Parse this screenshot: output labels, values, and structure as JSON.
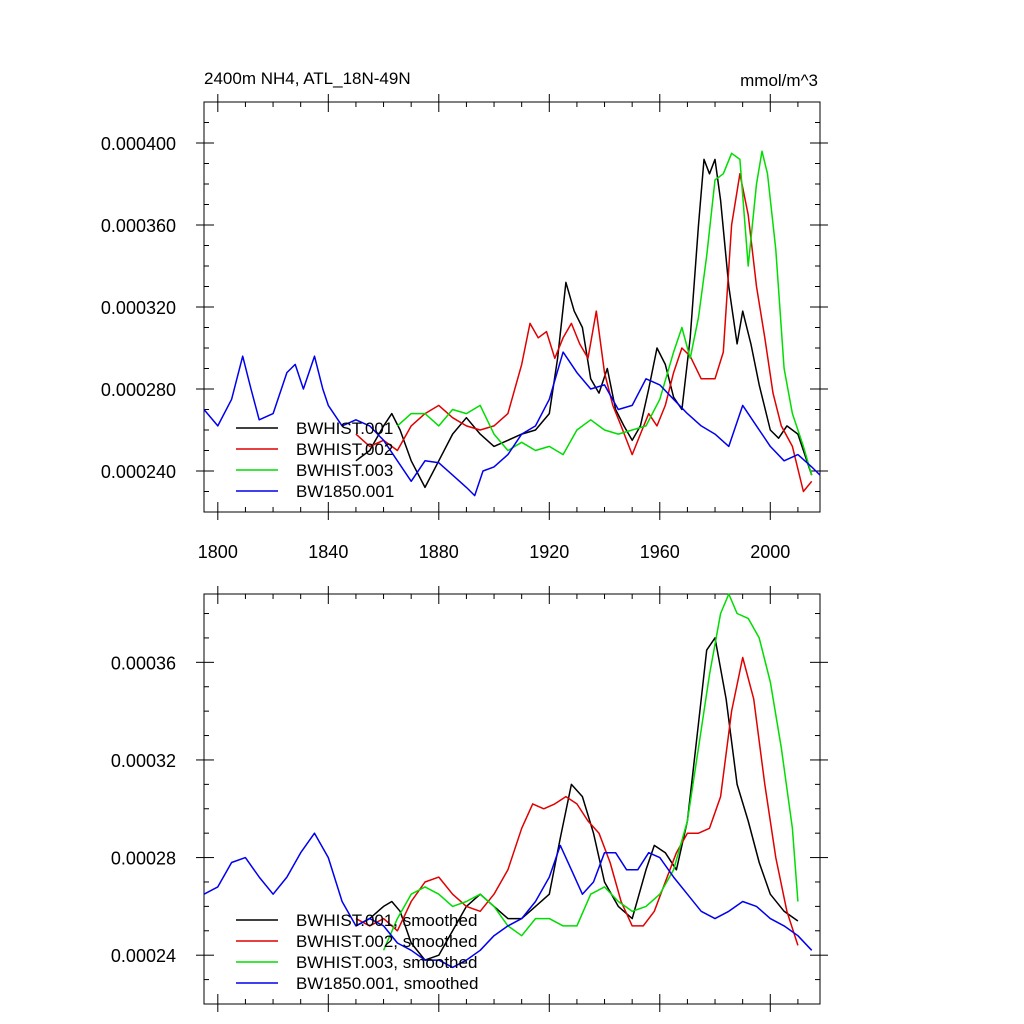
{
  "chart_data": [
    {
      "type": "line",
      "title": "2400m NH4, ATL_18N-49N",
      "units": "mmol/m^3",
      "xlabel": "",
      "ylabel": "",
      "xlim": [
        1795,
        2018
      ],
      "ylim": [
        0.00022,
        0.00042
      ],
      "x_ticks": [
        1800,
        1840,
        1880,
        1920,
        1960,
        2000
      ],
      "x_tick_labels": [
        "1800",
        "1840",
        "1880",
        "1920",
        "1960",
        "2000"
      ],
      "y_ticks": [
        0.00024,
        0.00028,
        0.00032,
        0.00036,
        0.0004
      ],
      "y_tick_labels": [
        "0.000240",
        "0.000280",
        "0.000320",
        "0.000360",
        "0.000400"
      ],
      "legend_position": "bottom-left",
      "series": [
        {
          "name": "BWHIST.001",
          "color": "#000000",
          "x": [
            1850,
            1855,
            1860,
            1863,
            1866,
            1870,
            1875,
            1880,
            1885,
            1890,
            1895,
            1900,
            1905,
            1910,
            1915,
            1920,
            1923,
            1926,
            1929,
            1932,
            1935,
            1938,
            1941,
            1944,
            1947,
            1950,
            1953,
            1956,
            1959,
            1962,
            1965,
            1968,
            1971,
            1974,
            1976,
            1978,
            1980,
            1982,
            1985,
            1988,
            1990,
            1993,
            1996,
            2000,
            2003,
            2006,
            2010,
            2015
          ],
          "y": [
            0.000245,
            0.00025,
            0.000262,
            0.000268,
            0.00026,
            0.000245,
            0.000232,
            0.000245,
            0.000258,
            0.000266,
            0.000258,
            0.000252,
            0.000255,
            0.000258,
            0.00026,
            0.000268,
            0.000295,
            0.000332,
            0.000318,
            0.00031,
            0.000285,
            0.000278,
            0.00029,
            0.00027,
            0.000262,
            0.000255,
            0.000262,
            0.00028,
            0.0003,
            0.000292,
            0.000276,
            0.00027,
            0.000305,
            0.00036,
            0.000392,
            0.000385,
            0.000392,
            0.000372,
            0.00033,
            0.000302,
            0.000318,
            0.000302,
            0.000282,
            0.00026,
            0.000256,
            0.000262,
            0.000258,
            0.000238
          ]
        },
        {
          "name": "BWHIST.002",
          "color": "#e00000",
          "x": [
            1850,
            1855,
            1860,
            1865,
            1870,
            1875,
            1880,
            1885,
            1890,
            1895,
            1900,
            1905,
            1910,
            1913,
            1916,
            1919,
            1922,
            1925,
            1928,
            1931,
            1934,
            1937,
            1940,
            1943,
            1946,
            1950,
            1953,
            1956,
            1959,
            1962,
            1965,
            1968,
            1971,
            1975,
            1980,
            1983,
            1986,
            1989,
            1992,
            1995,
            1998,
            2001,
            2004,
            2008,
            2012,
            2015
          ],
          "y": [
            0.000258,
            0.000252,
            0.000255,
            0.00025,
            0.000262,
            0.000268,
            0.000272,
            0.000266,
            0.000262,
            0.00026,
            0.000262,
            0.000268,
            0.000292,
            0.000312,
            0.000305,
            0.000308,
            0.000295,
            0.000305,
            0.000312,
            0.000302,
            0.000295,
            0.000318,
            0.000288,
            0.000272,
            0.000262,
            0.000248,
            0.000258,
            0.000268,
            0.000262,
            0.000272,
            0.000288,
            0.0003,
            0.000296,
            0.000285,
            0.000285,
            0.000298,
            0.00036,
            0.000385,
            0.000365,
            0.00033,
            0.000305,
            0.000278,
            0.000262,
            0.000252,
            0.00023,
            0.000235
          ]
        },
        {
          "name": "BWHIST.003",
          "color": "#00dd00",
          "x": [
            1865,
            1870,
            1875,
            1880,
            1885,
            1890,
            1895,
            1900,
            1905,
            1910,
            1915,
            1920,
            1925,
            1930,
            1935,
            1940,
            1945,
            1950,
            1955,
            1960,
            1965,
            1968,
            1971,
            1974,
            1977,
            1980,
            1983,
            1986,
            1989,
            1992,
            1995,
            1997,
            1999,
            2002,
            2005,
            2008,
            2012,
            2015
          ],
          "y": [
            0.000262,
            0.000268,
            0.000268,
            0.000262,
            0.00027,
            0.000268,
            0.000272,
            0.000258,
            0.00025,
            0.000254,
            0.00025,
            0.000252,
            0.000248,
            0.00026,
            0.000265,
            0.00026,
            0.000258,
            0.00026,
            0.000262,
            0.000275,
            0.000298,
            0.00031,
            0.000295,
            0.000315,
            0.000345,
            0.000382,
            0.000385,
            0.000395,
            0.000392,
            0.00034,
            0.00038,
            0.000396,
            0.000385,
            0.000348,
            0.00029,
            0.000268,
            0.000252,
            0.000238
          ]
        },
        {
          "name": "BW1850.001",
          "color": "#0000ee",
          "x": [
            1795,
            1800,
            1805,
            1809,
            1812,
            1815,
            1820,
            1825,
            1828,
            1831,
            1835,
            1838,
            1840,
            1845,
            1850,
            1855,
            1860,
            1865,
            1870,
            1875,
            1880,
            1885,
            1890,
            1893,
            1896,
            1900,
            1905,
            1910,
            1915,
            1920,
            1925,
            1930,
            1935,
            1940,
            1945,
            1950,
            1955,
            1960,
            1965,
            1970,
            1975,
            1980,
            1985,
            1990,
            1995,
            2000,
            2005,
            2010,
            2015,
            2018
          ],
          "y": [
            0.00027,
            0.000262,
            0.000275,
            0.000296,
            0.00028,
            0.000265,
            0.000268,
            0.000288,
            0.000292,
            0.00028,
            0.000296,
            0.00028,
            0.000272,
            0.000262,
            0.000265,
            0.000262,
            0.000255,
            0.000245,
            0.000235,
            0.000245,
            0.000244,
            0.000238,
            0.000232,
            0.000228,
            0.00024,
            0.000242,
            0.000248,
            0.000258,
            0.000262,
            0.000275,
            0.000298,
            0.000288,
            0.00028,
            0.000282,
            0.00027,
            0.000272,
            0.000285,
            0.000282,
            0.000275,
            0.000268,
            0.000262,
            0.000258,
            0.000252,
            0.000272,
            0.000262,
            0.000252,
            0.000245,
            0.000248,
            0.000242,
            0.000238
          ]
        }
      ]
    },
    {
      "type": "line",
      "title": "",
      "xlabel": "",
      "ylabel": "",
      "xlim": [
        1795,
        2018
      ],
      "ylim": [
        0.00022,
        0.000388
      ],
      "x_ticks": [
        1800,
        1840,
        1880,
        1920,
        1960,
        2000
      ],
      "x_tick_labels": [],
      "y_ticks": [
        0.00024,
        0.00028,
        0.00032,
        0.00036
      ],
      "y_tick_labels": [
        "0.00024",
        "0.00028",
        "0.00032",
        "0.00036"
      ],
      "legend_position": "bottom-left",
      "series": [
        {
          "name": "BWHIST.001, smoothed",
          "color": "#000000",
          "x": [
            1850,
            1855,
            1860,
            1863,
            1866,
            1870,
            1875,
            1880,
            1885,
            1890,
            1895,
            1900,
            1905,
            1910,
            1915,
            1920,
            1924,
            1928,
            1932,
            1936,
            1940,
            1945,
            1950,
            1955,
            1958,
            1962,
            1966,
            1970,
            1974,
            1977,
            1980,
            1984,
            1988,
            1992,
            1996,
            2000,
            2005,
            2010
          ],
          "y": [
            0.000252,
            0.000255,
            0.00026,
            0.000262,
            0.000258,
            0.000245,
            0.000238,
            0.00024,
            0.00025,
            0.00026,
            0.000265,
            0.00026,
            0.000255,
            0.000255,
            0.00026,
            0.000265,
            0.000288,
            0.00031,
            0.000305,
            0.00029,
            0.00027,
            0.00026,
            0.000255,
            0.000275,
            0.000285,
            0.000282,
            0.000275,
            0.000295,
            0.000335,
            0.000365,
            0.00037,
            0.000345,
            0.00031,
            0.000295,
            0.000278,
            0.000265,
            0.000258,
            0.000254
          ]
        },
        {
          "name": "BWHIST.002, smoothed",
          "color": "#e00000",
          "x": [
            1850,
            1855,
            1860,
            1865,
            1870,
            1875,
            1880,
            1885,
            1890,
            1895,
            1900,
            1905,
            1910,
            1914,
            1918,
            1922,
            1926,
            1930,
            1934,
            1938,
            1942,
            1946,
            1950,
            1954,
            1958,
            1962,
            1966,
            1970,
            1974,
            1978,
            1982,
            1986,
            1990,
            1994,
            1998,
            2002,
            2006,
            2010
          ],
          "y": [
            0.000255,
            0.000252,
            0.000255,
            0.00025,
            0.000262,
            0.00027,
            0.000272,
            0.000265,
            0.00026,
            0.000258,
            0.000265,
            0.000275,
            0.000292,
            0.000302,
            0.0003,
            0.000302,
            0.000305,
            0.000302,
            0.000295,
            0.00029,
            0.000278,
            0.000262,
            0.000252,
            0.000252,
            0.000258,
            0.00027,
            0.000282,
            0.00029,
            0.00029,
            0.000292,
            0.000305,
            0.00034,
            0.000362,
            0.000345,
            0.00031,
            0.00028,
            0.000258,
            0.000244
          ]
        },
        {
          "name": "BWHIST.003, smoothed",
          "color": "#00dd00",
          "x": [
            1860,
            1865,
            1870,
            1875,
            1880,
            1885,
            1890,
            1895,
            1900,
            1905,
            1910,
            1915,
            1920,
            1925,
            1930,
            1935,
            1940,
            1945,
            1950,
            1955,
            1960,
            1965,
            1970,
            1974,
            1978,
            1982,
            1985,
            1988,
            1992,
            1996,
            2000,
            2004,
            2008,
            2010
          ],
          "y": [
            0.000242,
            0.000255,
            0.000265,
            0.000268,
            0.000265,
            0.00026,
            0.000262,
            0.000265,
            0.00026,
            0.000252,
            0.000248,
            0.000255,
            0.000255,
            0.000252,
            0.000252,
            0.000265,
            0.000268,
            0.000262,
            0.000258,
            0.00026,
            0.000265,
            0.000275,
            0.000295,
            0.000325,
            0.000355,
            0.00038,
            0.000388,
            0.00038,
            0.000378,
            0.00037,
            0.000352,
            0.000325,
            0.000292,
            0.000262
          ]
        },
        {
          "name": "BW1850.001, smoothed",
          "color": "#0000ee",
          "x": [
            1795,
            1800,
            1805,
            1810,
            1815,
            1820,
            1825,
            1830,
            1835,
            1840,
            1845,
            1850,
            1855,
            1860,
            1865,
            1870,
            1875,
            1880,
            1885,
            1890,
            1895,
            1900,
            1905,
            1910,
            1915,
            1920,
            1924,
            1928,
            1932,
            1936,
            1940,
            1944,
            1948,
            1952,
            1956,
            1960,
            1965,
            1970,
            1975,
            1980,
            1985,
            1990,
            1995,
            2000,
            2005,
            2010,
            2015
          ],
          "y": [
            0.000265,
            0.000268,
            0.000278,
            0.00028,
            0.000272,
            0.000265,
            0.000272,
            0.000282,
            0.00029,
            0.00028,
            0.000262,
            0.000252,
            0.000255,
            0.000252,
            0.000245,
            0.000242,
            0.000238,
            0.000238,
            0.000235,
            0.000238,
            0.000242,
            0.000248,
            0.000252,
            0.000255,
            0.000262,
            0.000272,
            0.000285,
            0.000275,
            0.000265,
            0.00027,
            0.000282,
            0.000282,
            0.000275,
            0.000275,
            0.000282,
            0.00028,
            0.000272,
            0.000265,
            0.000258,
            0.000255,
            0.000258,
            0.000262,
            0.00026,
            0.000255,
            0.000252,
            0.000248,
            0.000242
          ]
        }
      ]
    }
  ]
}
